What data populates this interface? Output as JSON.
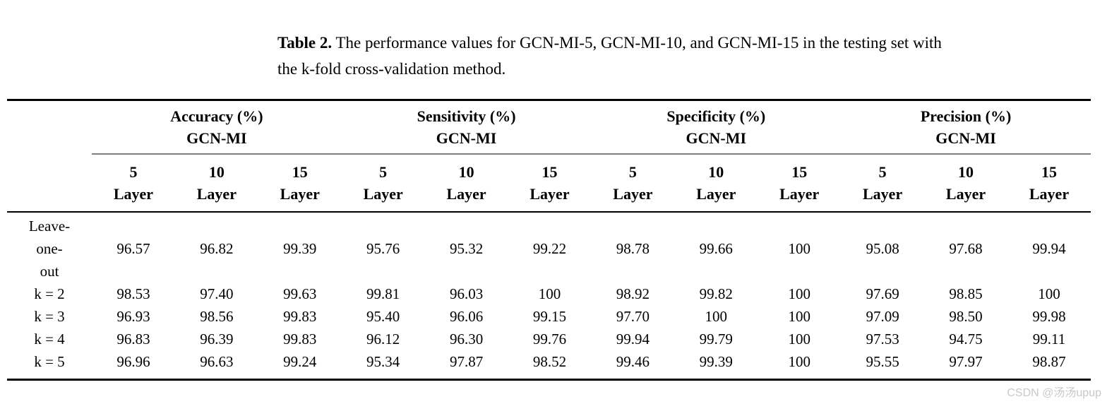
{
  "caption": {
    "label": "Table 2.",
    "line1": "The performance values for GCN-MI-5, GCN-MI-10, and GCN-MI-15 in the testing set with",
    "line2": "the k-fold cross-validation method."
  },
  "table": {
    "groups": [
      {
        "metric": "Accuracy (%)",
        "model": "GCN-MI"
      },
      {
        "metric": "Sensitivity (%)",
        "model": "GCN-MI"
      },
      {
        "metric": "Specificity (%)",
        "model": "GCN-MI"
      },
      {
        "metric": "Precision (%)",
        "model": "GCN-MI"
      }
    ],
    "layer_unit": "Layer",
    "sub_columns": [
      "5",
      "10",
      "15",
      "5",
      "10",
      "15",
      "5",
      "10",
      "15",
      "5",
      "10",
      "15"
    ],
    "rows": [
      {
        "label_lines": [
          "Leave-",
          "one-",
          "out"
        ],
        "values": [
          "96.57",
          "96.82",
          "99.39",
          "95.76",
          "95.32",
          "99.22",
          "98.78",
          "99.66",
          "100",
          "95.08",
          "97.68",
          "99.94"
        ]
      },
      {
        "label_lines": [
          "k = 2"
        ],
        "values": [
          "98.53",
          "97.40",
          "99.63",
          "99.81",
          "96.03",
          "100",
          "98.92",
          "99.82",
          "100",
          "97.69",
          "98.85",
          "100"
        ]
      },
      {
        "label_lines": [
          "k = 3"
        ],
        "values": [
          "96.93",
          "98.56",
          "99.83",
          "95.40",
          "96.06",
          "99.15",
          "97.70",
          "100",
          "100",
          "97.09",
          "98.50",
          "99.98"
        ]
      },
      {
        "label_lines": [
          "k = 4"
        ],
        "values": [
          "96.83",
          "96.39",
          "99.83",
          "96.12",
          "96.30",
          "99.76",
          "99.94",
          "99.79",
          "100",
          "97.53",
          "94.75",
          "99.11"
        ]
      },
      {
        "label_lines": [
          "k = 5"
        ],
        "values": [
          "96.96",
          "96.63",
          "99.24",
          "95.34",
          "97.87",
          "98.52",
          "99.46",
          "99.39",
          "100",
          "95.55",
          "97.97",
          "98.87"
        ]
      }
    ]
  },
  "watermark": {
    "text": "CSDN @汤汤upup"
  },
  "colors": {
    "text": "#000000",
    "heavy_rule": "#000000",
    "group_rule": "#808080",
    "watermark": "#c9c9c9",
    "background": "#ffffff"
  }
}
